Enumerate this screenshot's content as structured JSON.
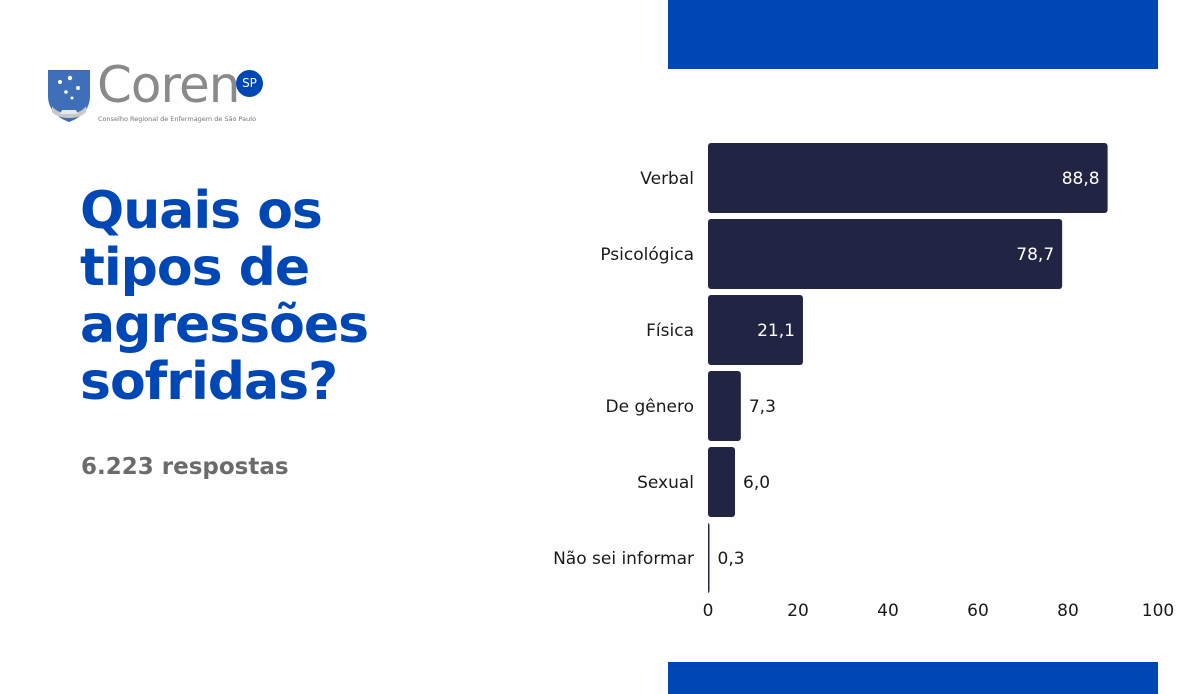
{
  "colors": {
    "brand_blue": "#0047b6",
    "bar": "#222444",
    "text_dark": "#1a1a1a",
    "subtitle_gray": "#6b6b6b"
  },
  "logo": {
    "name": "Coren",
    "badge": "SP",
    "tagline": "Conselho Regional de Enfermagem de São Paulo",
    "emblem_icon": "shield-stars-icon"
  },
  "heading": {
    "lines": [
      "Quais os",
      "tipos de",
      "agressões",
      "sofridas?"
    ]
  },
  "responses_label": "6.223 respostas",
  "chart_data": {
    "type": "bar",
    "orientation": "horizontal",
    "categories": [
      "Verbal",
      "Psicológica",
      "Física",
      "De gênero",
      "Sexual",
      "Não sei informar"
    ],
    "values": [
      88.8,
      78.7,
      21.1,
      7.3,
      6.0,
      0.3
    ],
    "value_labels": [
      "88,8",
      "78,7",
      "21,1",
      "7,3",
      "6,0",
      "0,3"
    ],
    "xlim": [
      0,
      100
    ],
    "xticks": [
      0,
      20,
      40,
      60,
      80,
      100
    ],
    "xtick_labels": [
      "0",
      "20",
      "40",
      "60",
      "80",
      "100"
    ],
    "grid": false,
    "legend": "none"
  }
}
